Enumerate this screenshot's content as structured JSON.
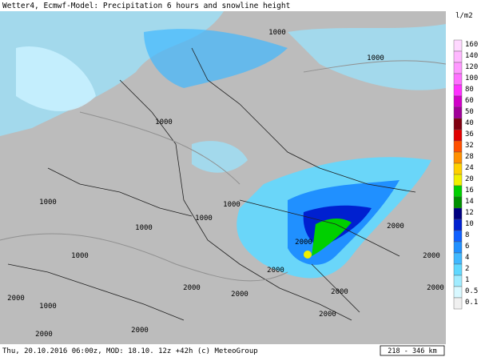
{
  "header": {
    "title": "Wetter4, Ecmwf-Model: Precipitation 6 hours and snowline height"
  },
  "footer": {
    "info": "Thu, 20.10.2016 06:00z, MOD: 18.10. 12z +42h (c) MeteoGroup",
    "scale": "218 - 346 km"
  },
  "legend": {
    "unit": "l/m2",
    "levels": [
      {
        "label": "160",
        "color": "#ffd8ff"
      },
      {
        "label": "140",
        "color": "#ffb8ff"
      },
      {
        "label": "120",
        "color": "#ff98ff"
      },
      {
        "label": "100",
        "color": "#ff70ff"
      },
      {
        "label": "80",
        "color": "#ff30ff"
      },
      {
        "label": "60",
        "color": "#d000c8"
      },
      {
        "label": "50",
        "color": "#a00098"
      },
      {
        "label": "40",
        "color": "#800010"
      },
      {
        "label": "36",
        "color": "#e00000"
      },
      {
        "label": "32",
        "color": "#ff5000"
      },
      {
        "label": "28",
        "color": "#ff9000"
      },
      {
        "label": "24",
        "color": "#ffd000"
      },
      {
        "label": "20",
        "color": "#f0f000"
      },
      {
        "label": "16",
        "color": "#00d000"
      },
      {
        "label": "14",
        "color": "#009000"
      },
      {
        "label": "12",
        "color": "#000080"
      },
      {
        "label": "10",
        "color": "#0020d0"
      },
      {
        "label": "8",
        "color": "#1060ff"
      },
      {
        "label": "6",
        "color": "#2090ff"
      },
      {
        "label": "4",
        "color": "#40b8ff"
      },
      {
        "label": "2",
        "color": "#60d8ff"
      },
      {
        "label": "1",
        "color": "#a0ecff"
      },
      {
        "label": "0.5",
        "color": "#d8f8ff"
      },
      {
        "label": "0.1",
        "color": "#f0f0f0"
      }
    ]
  },
  "map": {
    "contour_labels": [
      "1000",
      "1000",
      "1000",
      "1000",
      "1000",
      "1000",
      "1000",
      "1000",
      "1000",
      "2000",
      "2000",
      "2000",
      "2000",
      "2000",
      "2000",
      "2000",
      "2000",
      "2000",
      "2000",
      "2000",
      "2000"
    ]
  }
}
